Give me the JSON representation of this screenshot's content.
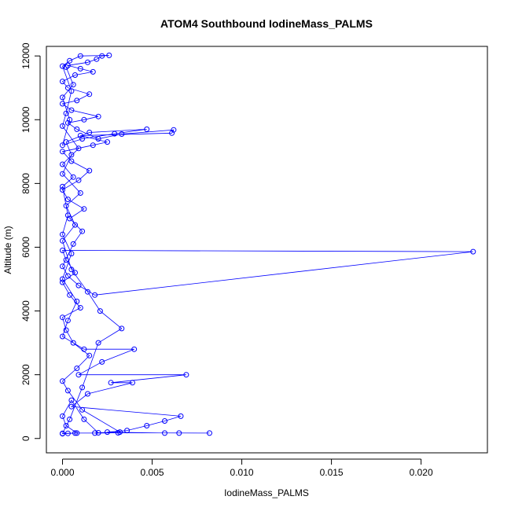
{
  "chart_data": {
    "type": "scatter",
    "title": "ATOM4 Southbound IodineMass_PALMS",
    "xlabel": "IodineMass_PALMS",
    "ylabel": "Altitude (m)",
    "xlim": [
      -0.0009,
      0.0237
    ],
    "ylim": [
      -450,
      12300
    ],
    "x_ticks": [
      0.0,
      0.005,
      0.01,
      0.015,
      0.02
    ],
    "x_tick_labels": [
      "0.000",
      "0.005",
      "0.010",
      "0.015",
      "0.020"
    ],
    "y_ticks": [
      0,
      2000,
      4000,
      6000,
      8000,
      10000,
      12000
    ],
    "y_tick_labels": [
      "0",
      "2000",
      "4000",
      "6000",
      "8000",
      "10000",
      "12000"
    ],
    "grid": false,
    "legend": "none",
    "series_color": "#0000ff",
    "points": [
      [
        0.0,
        150
      ],
      [
        0.0003,
        160
      ],
      [
        0.0008,
        170
      ],
      [
        0.0002,
        400
      ],
      [
        0.0,
        700
      ],
      [
        0.0005,
        1200
      ],
      [
        0.0012,
        600
      ],
      [
        0.002,
        180
      ],
      [
        0.0032,
        200
      ],
      [
        0.0011,
        900
      ],
      [
        0.0003,
        1500
      ],
      [
        0.0,
        1800
      ],
      [
        0.0008,
        2200
      ],
      [
        0.0015,
        2600
      ],
      [
        0.0006,
        3000
      ],
      [
        0.0002,
        3400
      ],
      [
        0.0,
        3800
      ],
      [
        0.001,
        4100
      ],
      [
        0.0004,
        4500
      ],
      [
        0.0,
        4900
      ],
      [
        0.0007,
        5200
      ],
      [
        0.0002,
        5600
      ],
      [
        0.0,
        5900
      ],
      [
        0.0229,
        5860
      ],
      [
        0.0018,
        4500
      ],
      [
        0.0009,
        4800
      ],
      [
        0.0003,
        5100
      ],
      [
        0.0,
        5400
      ],
      [
        0.0006,
        6100
      ],
      [
        0.0011,
        6500
      ],
      [
        0.0004,
        6900
      ],
      [
        0.0012,
        7200
      ],
      [
        0.0003,
        7500
      ],
      [
        0.0,
        7800
      ],
      [
        0.0009,
        8100
      ],
      [
        0.0015,
        8400
      ],
      [
        0.0005,
        8700
      ],
      [
        0.0,
        9000
      ],
      [
        0.0017,
        9200
      ],
      [
        0.0025,
        9300
      ],
      [
        0.001,
        9500
      ],
      [
        0.0061,
        9580
      ],
      [
        0.0062,
        9680
      ],
      [
        0.0033,
        9550
      ],
      [
        0.002,
        9400
      ],
      [
        0.0008,
        9700
      ],
      [
        0.0003,
        9900
      ],
      [
        0.0012,
        10000
      ],
      [
        0.002,
        10100
      ],
      [
        0.0005,
        10300
      ],
      [
        0.0,
        10500
      ],
      [
        0.0008,
        10600
      ],
      [
        0.0015,
        10800
      ],
      [
        0.0003,
        11000
      ],
      [
        0.0,
        11200
      ],
      [
        0.0007,
        11400
      ],
      [
        0.0017,
        11500
      ],
      [
        0.001,
        11600
      ],
      [
        0.0003,
        11700
      ],
      [
        0.0014,
        11800
      ],
      [
        0.0019,
        11900
      ],
      [
        0.0022,
        12000
      ],
      [
        0.0026,
        12020
      ],
      [
        0.001,
        12000
      ],
      [
        0.0004,
        11850
      ],
      [
        0.0,
        11680
      ],
      [
        0.0005,
        10900
      ],
      [
        0.0002,
        10200
      ],
      [
        0.0,
        9800
      ],
      [
        0.0009,
        9100
      ],
      [
        0.0,
        8600
      ],
      [
        0.0006,
        8200
      ],
      [
        0.0,
        7900
      ],
      [
        0.0003,
        7000
      ],
      [
        0.0,
        6400
      ],
      [
        0.0005,
        5800
      ],
      [
        0.0,
        5000
      ],
      [
        0.0008,
        4300
      ],
      [
        0.0003,
        3700
      ],
      [
        0.0,
        3200
      ],
      [
        0.0012,
        2800
      ],
      [
        0.004,
        2800
      ],
      [
        0.0022,
        2400
      ],
      [
        0.0009,
        2000
      ],
      [
        0.0069,
        2000
      ],
      [
        0.0027,
        1750
      ],
      [
        0.0039,
        1750
      ],
      [
        0.0014,
        1400
      ],
      [
        0.0005,
        1000
      ],
      [
        0.0066,
        700
      ],
      [
        0.0057,
        550
      ],
      [
        0.0047,
        400
      ],
      [
        0.0036,
        250
      ],
      [
        0.0025,
        200
      ],
      [
        0.0057,
        170
      ],
      [
        0.0065,
        170
      ],
      [
        0.0082,
        170
      ],
      [
        0.0031,
        180
      ],
      [
        0.0018,
        170
      ],
      [
        0.0007,
        170
      ],
      [
        0.0,
        160
      ],
      [
        0.0004,
        600
      ],
      [
        0.0011,
        1600
      ],
      [
        0.002,
        3000
      ],
      [
        0.0033,
        3450
      ],
      [
        0.0021,
        4000
      ],
      [
        0.0014,
        4600
      ],
      [
        0.0005,
        5300
      ],
      [
        0.0,
        6200
      ],
      [
        0.0007,
        6700
      ],
      [
        0.0002,
        7300
      ],
      [
        0.001,
        7700
      ],
      [
        0.0,
        8300
      ],
      [
        0.0005,
        8900
      ],
      [
        0.0002,
        9300
      ],
      [
        0.0015,
        9600
      ],
      [
        0.0047,
        9700
      ],
      [
        0.0029,
        9560
      ],
      [
        0.0011,
        9400
      ],
      [
        0.0,
        9200
      ],
      [
        0.0004,
        10000
      ],
      [
        0.0,
        10700
      ],
      [
        0.0006,
        11100
      ],
      [
        0.0002,
        11650
      ]
    ]
  }
}
